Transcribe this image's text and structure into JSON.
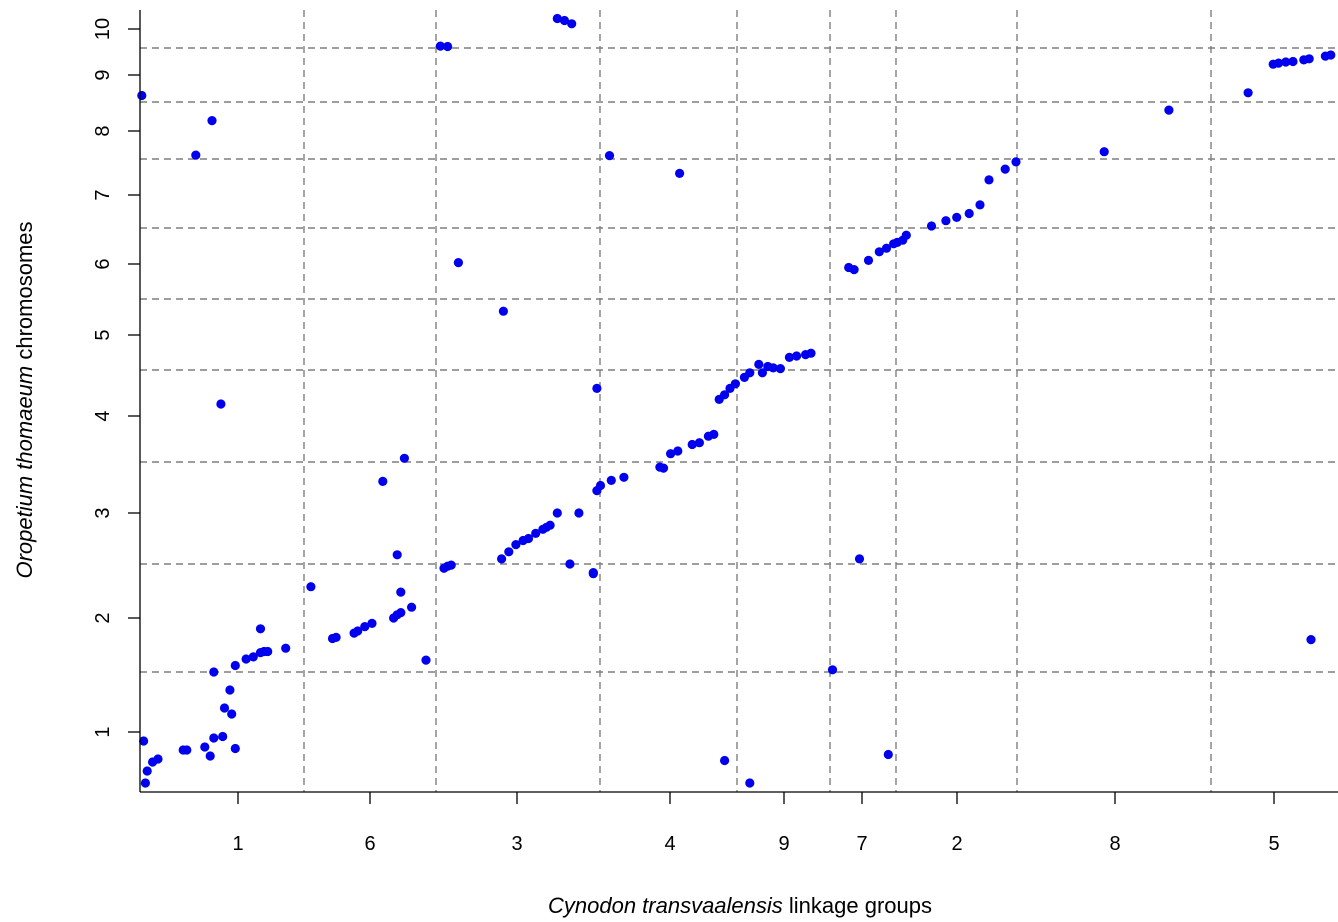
{
  "chart_data": {
    "type": "scatter",
    "title": "",
    "xlabel": {
      "italic": "Cynodon transvaalensis",
      "rest": " linkage groups"
    },
    "ylabel": {
      "italic": "Oropetium thomaeum",
      "rest": " chromosomes"
    },
    "x_group_labels": [
      "1",
      "6",
      "3",
      "4",
      "9",
      "7",
      "2",
      "8",
      "5"
    ],
    "y_group_labels": [
      "1",
      "2",
      "3",
      "4",
      "5",
      "6",
      "7",
      "8",
      "9",
      "10"
    ],
    "grid": true,
    "point_color": "#0000ee",
    "grid_color": "#7f7f7f",
    "points": [
      [
        0.1,
        0.94
      ],
      [
        0.15,
        0.66
      ],
      [
        0.2,
        0.74
      ],
      [
        0.35,
        0.8
      ],
      [
        0.5,
        0.82
      ],
      [
        1.2,
        0.88
      ],
      [
        1.3,
        0.88
      ],
      [
        1.8,
        0.9
      ],
      [
        1.95,
        0.84
      ],
      [
        2.05,
        0.96
      ],
      [
        2.3,
        0.97
      ],
      [
        2.55,
        1.15
      ],
      [
        2.35,
        1.2
      ],
      [
        2.5,
        1.35
      ],
      [
        2.05,
        1.5
      ],
      [
        2.65,
        1.56
      ],
      [
        2.95,
        1.62
      ],
      [
        3.15,
        1.64
      ],
      [
        3.35,
        1.68
      ],
      [
        3.45,
        1.69
      ],
      [
        3.55,
        1.69
      ],
      [
        4.05,
        1.72
      ],
      [
        3.35,
        1.9
      ],
      [
        2.65,
        0.89
      ],
      [
        0.05,
        8.62
      ],
      [
        1.55,
        7.57
      ],
      [
        2.0,
        8.18
      ],
      [
        2.25,
        4.13
      ],
      [
        5.35,
        1.81
      ],
      [
        5.45,
        1.82
      ],
      [
        5.95,
        1.86
      ],
      [
        6.05,
        1.88
      ],
      [
        6.25,
        1.92
      ],
      [
        6.45,
        1.95
      ],
      [
        7.05,
        2.0
      ],
      [
        7.15,
        2.03
      ],
      [
        7.25,
        2.05
      ],
      [
        7.55,
        2.1
      ],
      [
        7.25,
        2.24
      ],
      [
        4.75,
        2.29
      ],
      [
        6.75,
        3.31
      ],
      [
        7.15,
        2.59
      ],
      [
        7.95,
        1.61
      ],
      [
        8.45,
        2.46
      ],
      [
        8.55,
        2.48
      ],
      [
        8.65,
        2.49
      ],
      [
        7.35,
        3.54
      ],
      [
        8.35,
        9.55
      ],
      [
        8.55,
        9.54
      ],
      [
        8.85,
        6.02
      ],
      [
        10.05,
        2.55
      ],
      [
        10.25,
        2.62
      ],
      [
        10.45,
        2.69
      ],
      [
        10.65,
        2.73
      ],
      [
        10.8,
        2.75
      ],
      [
        11.0,
        2.8
      ],
      [
        11.2,
        2.84
      ],
      [
        11.3,
        2.86
      ],
      [
        11.4,
        2.88
      ],
      [
        11.6,
        3.0
      ],
      [
        12.2,
        3.0
      ],
      [
        10.1,
        5.33
      ],
      [
        11.95,
        2.5
      ],
      [
        11.6,
        10.22
      ],
      [
        11.8,
        10.18
      ],
      [
        12.0,
        10.11
      ],
      [
        12.6,
        2.42
      ],
      [
        12.6,
        2.41
      ],
      [
        12.7,
        3.22
      ],
      [
        12.8,
        3.27
      ],
      [
        13.1,
        3.32
      ],
      [
        13.45,
        3.35
      ],
      [
        12.7,
        4.3
      ],
      [
        13.05,
        7.56
      ],
      [
        14.45,
        3.45
      ],
      [
        14.55,
        3.44
      ],
      [
        14.75,
        3.59
      ],
      [
        14.95,
        3.62
      ],
      [
        15.35,
        3.69
      ],
      [
        15.55,
        3.71
      ],
      [
        15.8,
        3.78
      ],
      [
        15.95,
        3.8
      ],
      [
        16.1,
        4.18
      ],
      [
        16.25,
        4.23
      ],
      [
        16.4,
        4.3
      ],
      [
        16.55,
        4.35
      ],
      [
        16.8,
        4.42
      ],
      [
        16.95,
        4.47
      ],
      [
        17.2,
        4.58
      ],
      [
        17.3,
        4.47
      ],
      [
        17.45,
        4.55
      ],
      [
        17.6,
        4.53
      ],
      [
        17.8,
        4.52
      ],
      [
        15.0,
        7.3
      ],
      [
        16.25,
        0.81
      ],
      [
        16.95,
        0.66
      ],
      [
        18.05,
        4.68
      ],
      [
        18.25,
        4.7
      ],
      [
        18.5,
        4.72
      ],
      [
        18.65,
        4.74
      ],
      [
        19.25,
        1.52
      ],
      [
        19.7,
        5.95
      ],
      [
        19.85,
        5.92
      ],
      [
        20.25,
        6.05
      ],
      [
        20.55,
        6.17
      ],
      [
        20.75,
        6.22
      ],
      [
        20.95,
        6.28
      ],
      [
        21.05,
        6.3
      ],
      [
        21.2,
        6.33
      ],
      [
        21.3,
        6.4
      ],
      [
        20.0,
        2.55
      ],
      [
        20.8,
        0.85
      ],
      [
        22.0,
        6.53
      ],
      [
        22.4,
        6.61
      ],
      [
        22.7,
        6.66
      ],
      [
        23.05,
        6.72
      ],
      [
        23.35,
        6.85
      ],
      [
        23.6,
        7.21
      ],
      [
        24.05,
        7.36
      ],
      [
        24.35,
        7.46
      ],
      [
        26.8,
        7.63
      ],
      [
        28.6,
        8.36
      ],
      [
        30.8,
        8.67
      ],
      [
        31.5,
        9.2
      ],
      [
        31.65,
        9.22
      ],
      [
        31.85,
        9.24
      ],
      [
        32.05,
        9.25
      ],
      [
        32.35,
        9.28
      ],
      [
        32.5,
        9.3
      ],
      [
        32.95,
        9.35
      ],
      [
        33.1,
        9.37
      ],
      [
        32.55,
        1.8
      ]
    ]
  }
}
